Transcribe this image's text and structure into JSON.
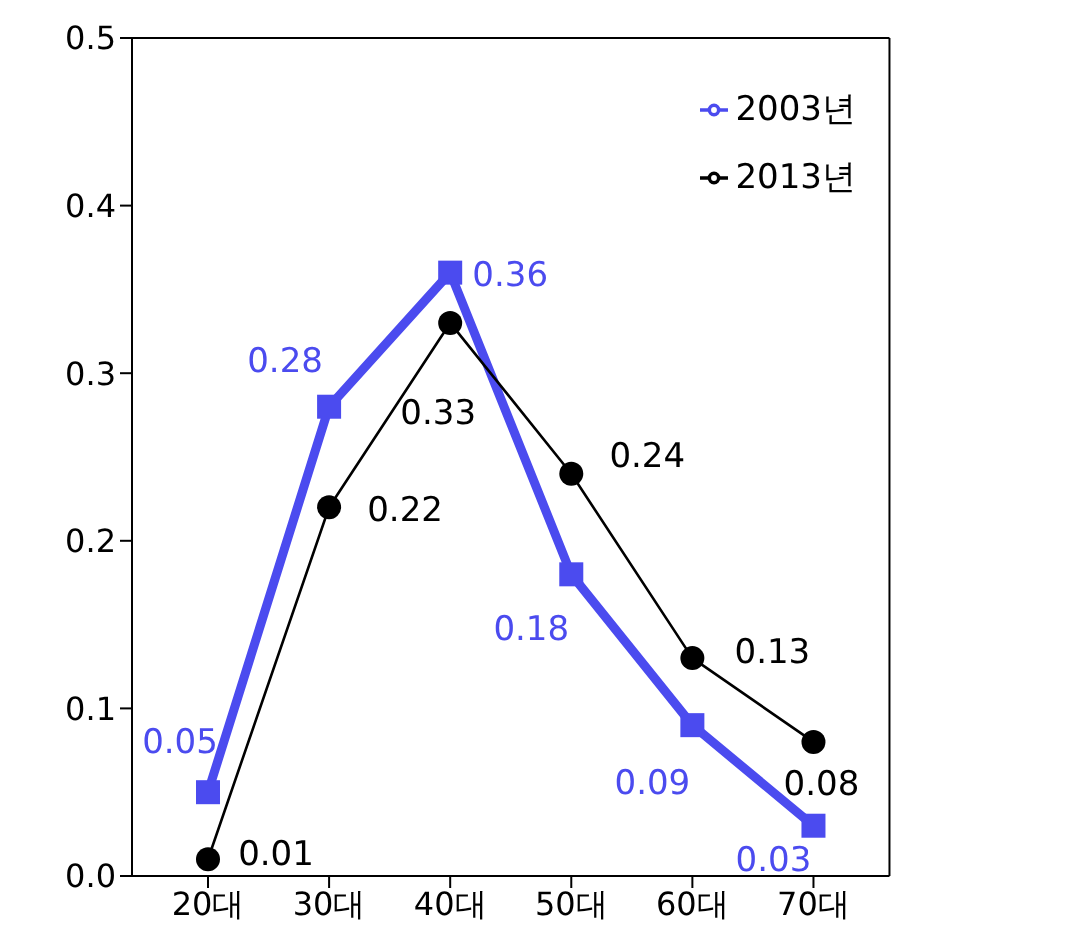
{
  "chart_data": {
    "type": "line",
    "categories": [
      "20대",
      "30대",
      "40대",
      "50대",
      "60대",
      "70대"
    ],
    "series": [
      {
        "name": "2003년",
        "color": "#4b4bef",
        "marker": "square",
        "values": [
          0.05,
          0.28,
          0.36,
          0.18,
          0.09,
          0.03
        ]
      },
      {
        "name": "2013년",
        "color": "#000000",
        "marker": "circle",
        "values": [
          0.01,
          0.22,
          0.33,
          0.24,
          0.13,
          0.08
        ]
      }
    ],
    "ylim": [
      0,
      0.5
    ],
    "yticks": [
      {
        "value": 0,
        "label": "0.0"
      },
      0.1,
      0.2,
      0.3,
      0.4,
      0.5
    ],
    "grid": false,
    "legend": "top right",
    "data_labels": true
  }
}
